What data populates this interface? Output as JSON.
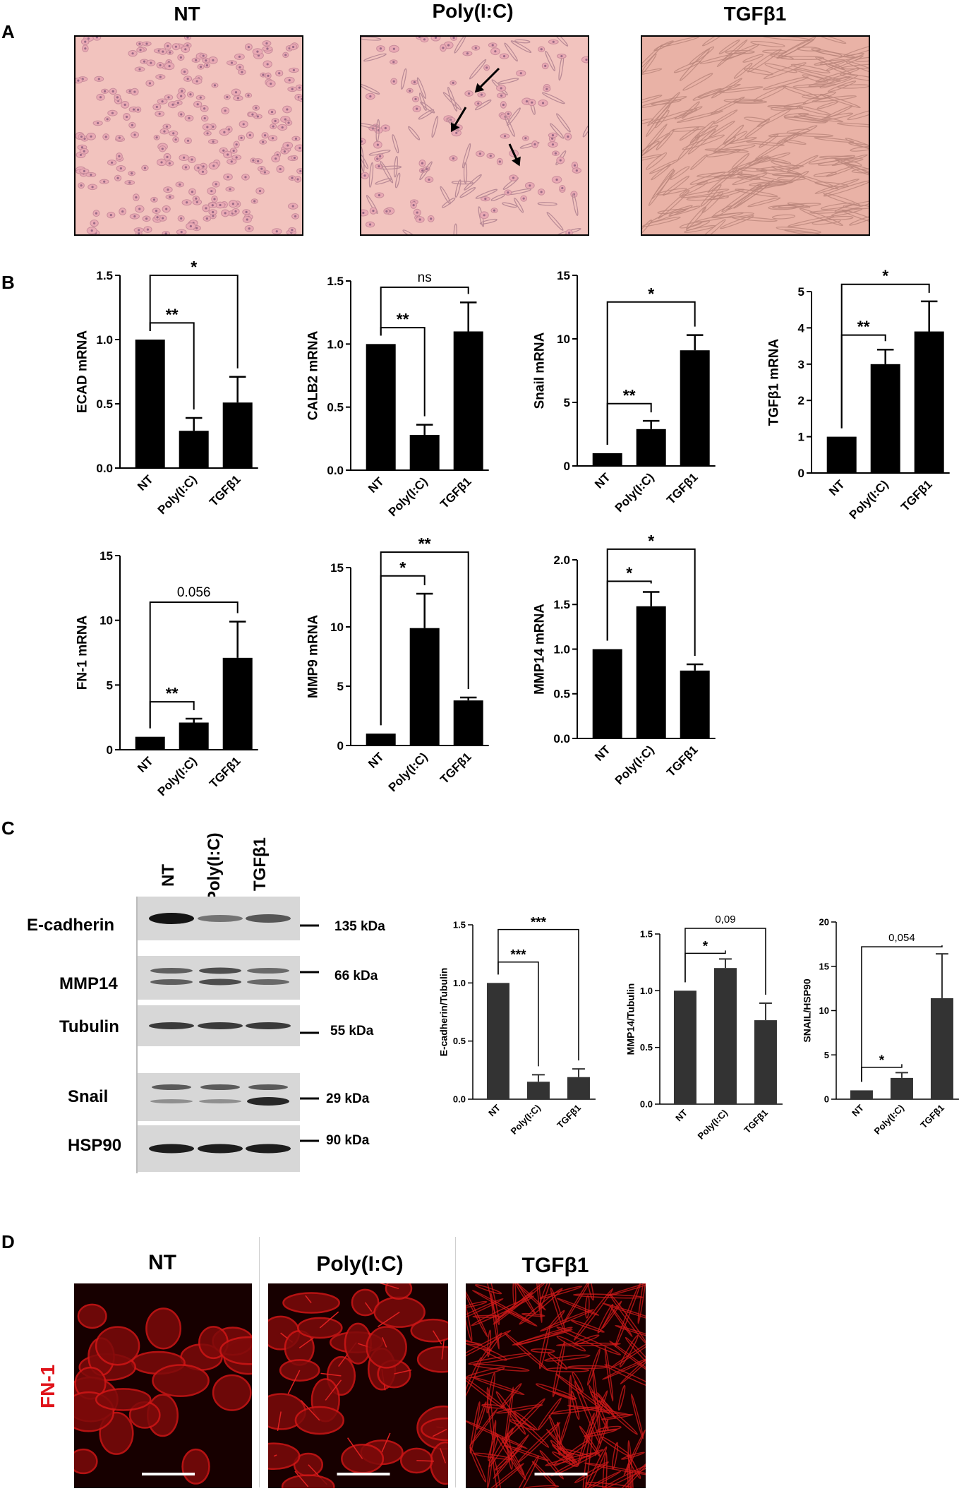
{
  "panels": {
    "A": "A",
    "B": "B",
    "C": "C",
    "D": "D"
  },
  "micrographs": {
    "titles": [
      "NT",
      "Poly(I:C)",
      "TGFβ1"
    ]
  },
  "colors": {
    "bar": "#000000",
    "bar_c": "#333333",
    "micro_bg": "#f2c3be",
    "micro_cell": "#c98d9c",
    "fn_red": "#e0131a"
  },
  "chart_data": [
    {
      "id": "ecad",
      "type": "bar",
      "ylabel": "ECAD mRNA",
      "categories": [
        "NT",
        "Poly(I:C)",
        "TGFβ1"
      ],
      "values": [
        1.0,
        0.29,
        0.51
      ],
      "errors": [
        0,
        0.1,
        0.2
      ],
      "ylim": [
        0,
        1.5
      ],
      "yticks": [
        "0.0",
        "0.5",
        "1.0",
        "1.5"
      ],
      "tick_values": [
        0,
        0.5,
        1.0,
        1.5
      ],
      "annotations": [
        {
          "from": 0,
          "to": 2,
          "label": "*",
          "level": 1.5
        },
        {
          "from": 0,
          "to": 1,
          "label": "**",
          "level": 1.13
        }
      ]
    },
    {
      "id": "calb2",
      "type": "bar",
      "ylabel": "CALB2 mRNA",
      "categories": [
        "NT",
        "Poly(I:C)",
        "TGFβ1"
      ],
      "values": [
        1.0,
        0.28,
        1.1
      ],
      "errors": [
        0,
        0.08,
        0.23
      ],
      "ylim": [
        0,
        1.5
      ],
      "yticks": [
        "0.0",
        "0.5",
        "1.0",
        "1.5"
      ],
      "tick_values": [
        0,
        0.5,
        1.0,
        1.5
      ],
      "annotations": [
        {
          "from": 0,
          "to": 2,
          "label": "ns",
          "level": 1.45
        },
        {
          "from": 0,
          "to": 1,
          "label": "**",
          "level": 1.13
        }
      ]
    },
    {
      "id": "snail",
      "type": "bar",
      "ylabel": "Snail mRNA",
      "categories": [
        "NT",
        "Poly(I:C)",
        "TGFβ1"
      ],
      "values": [
        1.0,
        2.9,
        9.1
      ],
      "errors": [
        0,
        0.65,
        1.2
      ],
      "ylim": [
        0,
        15
      ],
      "yticks": [
        "0",
        "5",
        "10",
        "15"
      ],
      "tick_values": [
        0,
        5,
        10,
        15
      ],
      "annotations": [
        {
          "from": 0,
          "to": 2,
          "label": "*",
          "level": 12.9
        },
        {
          "from": 0,
          "to": 1,
          "label": "**",
          "level": 4.9
        }
      ]
    },
    {
      "id": "tgfb1",
      "type": "bar",
      "ylabel": "TGFβ1 mRNA",
      "categories": [
        "NT",
        "Poly(I:C)",
        "TGFβ1"
      ],
      "values": [
        1.0,
        3.0,
        3.9
      ],
      "errors": [
        0,
        0.4,
        0.83
      ],
      "ylim": [
        0,
        5
      ],
      "yticks": [
        "0",
        "1",
        "2",
        "3",
        "4",
        "5"
      ],
      "tick_values": [
        0,
        1,
        2,
        3,
        4,
        5
      ],
      "annotations": [
        {
          "from": 0,
          "to": 2,
          "label": "*",
          "level": 5.2
        },
        {
          "from": 0,
          "to": 1,
          "label": "**",
          "level": 3.8
        }
      ]
    },
    {
      "id": "fn1",
      "type": "bar",
      "ylabel": "FN-1 mRNA",
      "categories": [
        "NT",
        "Poly(I:C)",
        "TGFβ1"
      ],
      "values": [
        1.0,
        2.1,
        7.1
      ],
      "errors": [
        0,
        0.3,
        2.8
      ],
      "ylim": [
        0,
        15
      ],
      "yticks": [
        "0",
        "5",
        "10",
        "15"
      ],
      "tick_values": [
        0,
        5,
        10,
        15
      ],
      "annotations": [
        {
          "from": 0,
          "to": 2,
          "label": "0.056",
          "level": 11.4
        },
        {
          "from": 0,
          "to": 1,
          "label": "**",
          "level": 3.7
        }
      ]
    },
    {
      "id": "mmp9",
      "type": "bar",
      "ylabel": "MMP9 mRNA",
      "categories": [
        "NT",
        "Poly(I:C)",
        "TGFβ1"
      ],
      "values": [
        1.0,
        9.9,
        3.8
      ],
      "errors": [
        0,
        2.9,
        0.25
      ],
      "ylim": [
        0,
        15
      ],
      "yticks": [
        "0",
        "5",
        "10",
        "15"
      ],
      "tick_values": [
        0,
        5,
        10,
        15
      ],
      "annotations": [
        {
          "from": 0,
          "to": 2,
          "label": "**",
          "level": 16.3
        },
        {
          "from": 0,
          "to": 1,
          "label": "*",
          "level": 14.3
        }
      ]
    },
    {
      "id": "mmp14",
      "type": "bar",
      "ylabel": "MMP14 mRNA",
      "categories": [
        "NT",
        "Poly(I:C)",
        "TGFβ1"
      ],
      "values": [
        1.0,
        1.48,
        0.76
      ],
      "errors": [
        0,
        0.16,
        0.07
      ],
      "ylim": [
        0,
        2.0
      ],
      "yticks": [
        "0.0",
        "0.5",
        "1.0",
        "1.5",
        "2.0"
      ],
      "tick_values": [
        0,
        0.5,
        1.0,
        1.5,
        2.0
      ],
      "annotations": [
        {
          "from": 0,
          "to": 2,
          "label": "*",
          "level": 2.12
        },
        {
          "from": 0,
          "to": 1,
          "label": "*",
          "level": 1.76
        }
      ]
    },
    {
      "id": "ecad_tub",
      "type": "bar",
      "ylabel": "E-cadherin/Tubulin",
      "categories": [
        "NT",
        "Poly(I:C)",
        "TGFβ1"
      ],
      "values": [
        1.0,
        0.15,
        0.19
      ],
      "errors": [
        0,
        0.06,
        0.07
      ],
      "ylim": [
        0,
        1.5
      ],
      "yticks": [
        "0.0",
        "0.5",
        "1.0",
        "1.5"
      ],
      "tick_values": [
        0,
        0.5,
        1.0,
        1.5
      ],
      "annotations": [
        {
          "from": 0,
          "to": 2,
          "label": "***",
          "level": 1.46
        },
        {
          "from": 0,
          "to": 1,
          "label": "***",
          "level": 1.18
        }
      ]
    },
    {
      "id": "mmp14_tub",
      "type": "bar",
      "ylabel": "MMP14/Tubulin",
      "categories": [
        "NT",
        "Poly(I:C)",
        "TGFβ1"
      ],
      "values": [
        1.0,
        1.2,
        0.74
      ],
      "errors": [
        0,
        0.08,
        0.15
      ],
      "ylim": [
        0,
        1.5
      ],
      "yticks": [
        "0.0",
        "0.5",
        "1.0",
        "1.5"
      ],
      "tick_values": [
        0,
        0.5,
        1.0,
        1.5
      ],
      "annotations": [
        {
          "from": 0,
          "to": 2,
          "label": "0,09",
          "level": 1.55
        },
        {
          "from": 0,
          "to": 1,
          "label": "*",
          "level": 1.33
        }
      ]
    },
    {
      "id": "snail_hsp",
      "type": "bar",
      "ylabel": "SNAIL/HSP90",
      "categories": [
        "NT",
        "Poly(I:C)",
        "TGFβ1"
      ],
      "values": [
        1.0,
        2.4,
        11.4
      ],
      "errors": [
        0,
        0.6,
        5.0
      ],
      "ylim": [
        0,
        20
      ],
      "yticks": [
        "0",
        "5",
        "10",
        "15",
        "20"
      ],
      "tick_values": [
        0,
        5,
        10,
        15,
        20
      ],
      "annotations": [
        {
          "from": 0,
          "to": 2,
          "label": "0,054",
          "level": 17.2
        },
        {
          "from": 0,
          "to": 1,
          "label": "*",
          "level": 3.6
        }
      ]
    }
  ],
  "blot": {
    "lanes": [
      "NT",
      "Poly(I:C)",
      "TGFβ1"
    ],
    "rows": [
      {
        "label": "E-cadherin",
        "kda": "135 kDa"
      },
      {
        "label": "MMP14",
        "kda": "66 kDa"
      },
      {
        "label": "Tubulin",
        "kda": "55 kDa"
      },
      {
        "label": "Snail",
        "kda": "29 kDa"
      },
      {
        "label": "HSP90",
        "kda": "90 kDa"
      }
    ]
  },
  "fn": {
    "titles": [
      "NT",
      "Poly(I:C)",
      "TGFβ1"
    ],
    "side_label": "FN-1"
  }
}
